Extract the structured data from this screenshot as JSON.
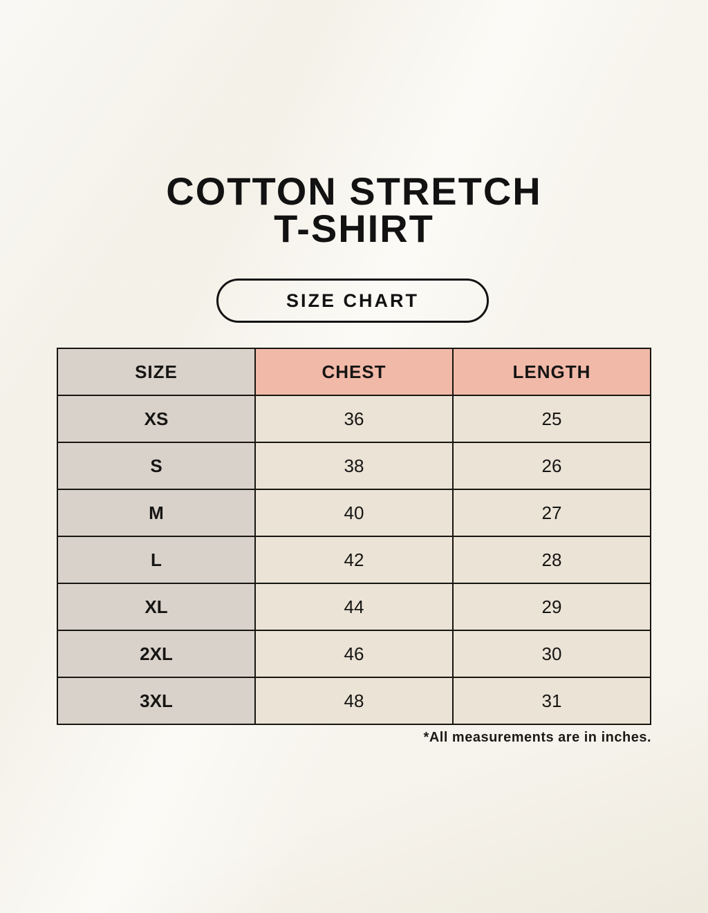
{
  "page": {
    "title_line1": "COTTON STRETCH",
    "title_line2": "T-SHIRT",
    "badge_label": "SIZE CHART",
    "footnote": "*All measurements are in inches."
  },
  "colors": {
    "background": "#f6f3ea",
    "size_column_bg": "#d9d2cb",
    "header_accent_bg": "#f1b9a8",
    "data_cell_bg": "#eae3d6",
    "border": "#17150f",
    "text": "#121212"
  },
  "chart_data": {
    "type": "table",
    "title": "COTTON STRETCH T-SHIRT — SIZE CHART",
    "columns": [
      "SIZE",
      "CHEST",
      "LENGTH"
    ],
    "rows": [
      [
        "XS",
        "36",
        "25"
      ],
      [
        "S",
        "38",
        "26"
      ],
      [
        "M",
        "40",
        "27"
      ],
      [
        "L",
        "42",
        "28"
      ],
      [
        "XL",
        "44",
        "29"
      ],
      [
        "2XL",
        "46",
        "30"
      ],
      [
        "3XL",
        "48",
        "31"
      ]
    ],
    "units": "inches",
    "notes": "*All measurements are in inches."
  }
}
